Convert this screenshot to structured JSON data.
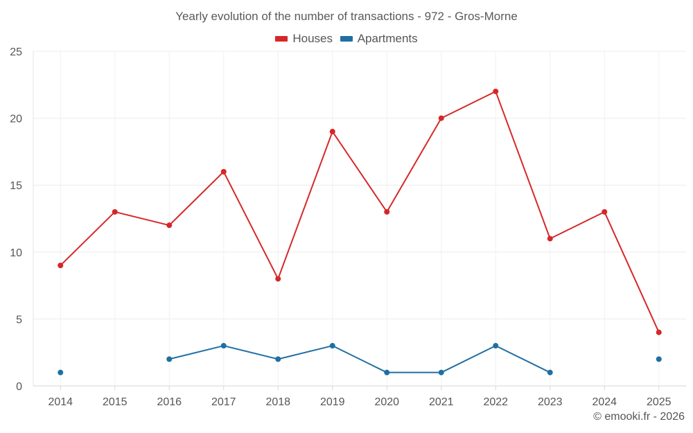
{
  "chart_data": {
    "type": "line",
    "title": "Yearly evolution of the number of transactions - 972 - Gros-Morne",
    "categories": [
      "2014",
      "2015",
      "2016",
      "2017",
      "2018",
      "2019",
      "2020",
      "2021",
      "2022",
      "2023",
      "2024",
      "2025"
    ],
    "series": [
      {
        "name": "Houses",
        "color": "#d62728",
        "values": [
          9,
          13,
          12,
          16,
          8,
          19,
          13,
          20,
          22,
          11,
          13,
          4
        ]
      },
      {
        "name": "Apartments",
        "color": "#1f6fa3",
        "values": [
          1,
          null,
          2,
          3,
          2,
          3,
          1,
          1,
          3,
          1,
          null,
          2
        ]
      }
    ],
    "ylim": [
      0,
      25
    ],
    "yticks": [
      0,
      5,
      10,
      15,
      20,
      25
    ],
    "grid": true,
    "legend_position": "top-center",
    "xlabel": "",
    "ylabel": ""
  },
  "footer": {
    "copyright": "© emooki.fr - 2026"
  }
}
